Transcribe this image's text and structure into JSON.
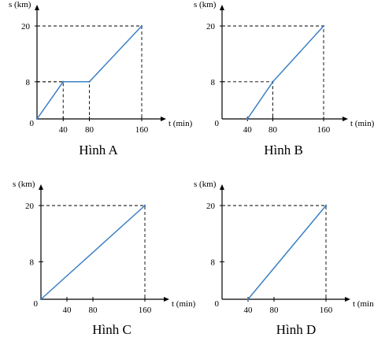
{
  "chart_data": [
    {
      "type": "line",
      "caption": "Hình A",
      "xlabel": "t (min)",
      "ylabel": "s (km)",
      "origin_label": "0",
      "x_ticks": [
        "40",
        "80",
        "160"
      ],
      "y_ticks": [
        "8",
        "20"
      ],
      "xlim": [
        0,
        160
      ],
      "ylim": [
        0,
        20
      ],
      "series": [
        {
          "x": [
            0,
            40,
            80,
            160
          ],
          "y": [
            0,
            8,
            8,
            20
          ]
        }
      ],
      "guides": [
        [
          40,
          8
        ],
        [
          80,
          8
        ],
        [
          160,
          20
        ]
      ],
      "color": "#3b7fc4"
    },
    {
      "type": "line",
      "caption": "Hình B",
      "xlabel": "t (min)",
      "ylabel": "s (km)",
      "origin_label": "0",
      "x_ticks": [
        "40",
        "80",
        "160"
      ],
      "y_ticks": [
        "8",
        "20"
      ],
      "xlim": [
        0,
        160
      ],
      "ylim": [
        0,
        20
      ],
      "series": [
        {
          "x": [
            40,
            80,
            160
          ],
          "y": [
            0,
            8,
            20
          ]
        }
      ],
      "guides": [
        [
          80,
          8
        ],
        [
          160,
          20
        ]
      ],
      "color": "#3b7fc4"
    },
    {
      "type": "line",
      "caption": "Hình C",
      "xlabel": "t (min)",
      "ylabel": "s (km)",
      "origin_label": "0",
      "x_ticks": [
        "40",
        "80",
        "160"
      ],
      "y_ticks": [
        "8",
        "20"
      ],
      "xlim": [
        0,
        160
      ],
      "ylim": [
        0,
        20
      ],
      "series": [
        {
          "x": [
            0,
            160
          ],
          "y": [
            0,
            20
          ]
        }
      ],
      "guides": [
        [
          160,
          20
        ]
      ],
      "color": "#3b7fc4"
    },
    {
      "type": "line",
      "caption": "Hình D",
      "xlabel": "t (min)",
      "ylabel": "s (km)",
      "origin_label": "0",
      "x_ticks": [
        "40",
        "80",
        "160"
      ],
      "y_ticks": [
        "8",
        "20"
      ],
      "xlim": [
        0,
        160
      ],
      "ylim": [
        0,
        20
      ],
      "series": [
        {
          "x": [
            40,
            160
          ],
          "y": [
            0,
            20
          ]
        }
      ],
      "guides": [
        [
          160,
          20
        ]
      ],
      "color": "#3b7fc4"
    }
  ]
}
